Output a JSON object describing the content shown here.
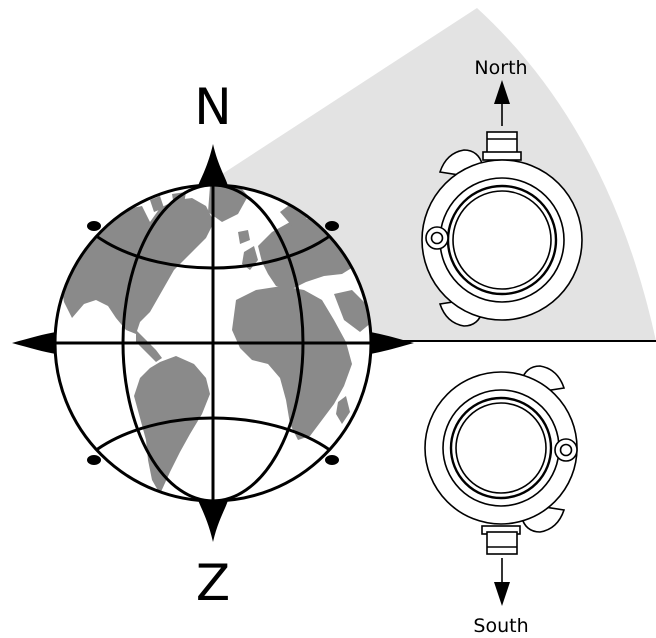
{
  "globe": {
    "top_letter": "N",
    "bottom_letter": "Z",
    "ocean_color": "#ffffff",
    "land_color": "#8a8a8a",
    "outline_color": "#000000"
  },
  "northern_sector": {
    "label": "North",
    "fill_color": "#e3e3e3"
  },
  "southern_sector": {
    "label": "South"
  }
}
